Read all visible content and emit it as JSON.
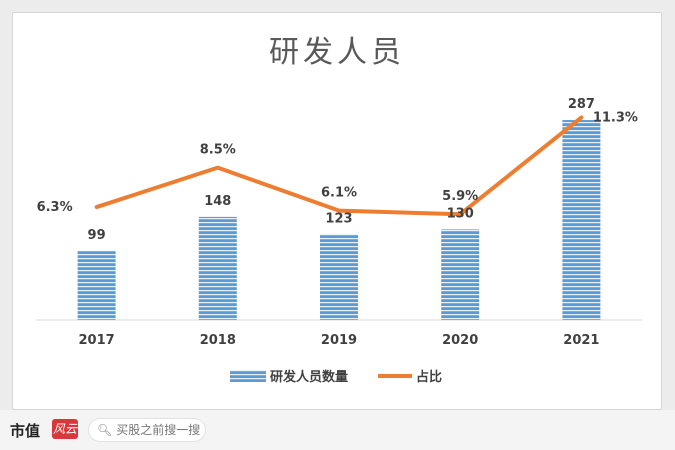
{
  "colors": {
    "bar": "#5b9bd5",
    "bar_stripe": "#ffffff",
    "line": "#ed7d31",
    "label": "#404040",
    "axis": "#d9d9d9"
  },
  "footer": {
    "brand": "市值",
    "brand_mark": "风云",
    "search_placeholder": "买股之前搜一搜",
    "search_icon": "search-icon"
  },
  "chart_data": {
    "type": "bar",
    "title": "研发人员",
    "categories": [
      "2017",
      "2018",
      "2019",
      "2020",
      "2021"
    ],
    "series": [
      {
        "name": "研发人员数量",
        "type": "bar",
        "values": [
          99,
          148,
          123,
          130,
          287
        ],
        "labels": [
          "99",
          "148",
          "123",
          "130",
          "287"
        ]
      },
      {
        "name": "占比",
        "type": "line",
        "values": [
          6.3,
          8.5,
          6.1,
          5.9,
          11.3
        ],
        "labels": [
          "6.3%",
          "8.5%",
          "6.1%",
          "5.9%",
          "11.3%"
        ]
      }
    ],
    "legend_position": "bottom",
    "grid": false
  }
}
